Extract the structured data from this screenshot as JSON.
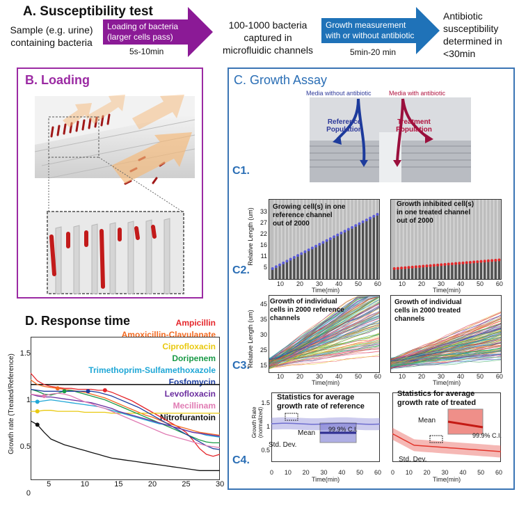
{
  "section_a": {
    "title": "A. Susceptibility test",
    "sample": [
      "Sample (e.g. urine)",
      "containing bacteria"
    ],
    "arrow1": [
      "Loading of bacteria",
      "(larger cells pass)"
    ],
    "arrow1_time": "5s-10min",
    "captured": [
      "100-1000 bacteria",
      "captured in",
      "microfluidic channels"
    ],
    "arrow2": [
      "Growth measurement",
      "with or without antibiotic"
    ],
    "arrow2_time": "5min-20 min",
    "result": [
      "Antibiotic",
      "susceptibility",
      "determined in",
      "<30min"
    ],
    "colors": {
      "arrow1": "#8b1a96",
      "arrow2": "#1f72b8"
    }
  },
  "section_b": {
    "title": "B. Loading"
  },
  "section_c": {
    "title": "C. Growth Assay",
    "media_without": "Media without antibiotic",
    "media_with": "Media with antibiotic",
    "reference_pop": [
      "Reference",
      "Population"
    ],
    "treatment_pop": [
      "Treatment",
      "Population"
    ],
    "labels": [
      "C1.",
      "C2.",
      "C3.",
      "C4."
    ],
    "c2_left": [
      "Growing cell(s) in one",
      "reference channel",
      "out of 2000"
    ],
    "c2_right": [
      "Growth inhibited cell(s)",
      "in one treated channel",
      "out of 2000"
    ],
    "c2_ylabel": "Relative Length (um)",
    "c2_yticks": [
      "33",
      "27",
      "22",
      "16",
      "11",
      "5"
    ],
    "c3_left": [
      "Growth of individual",
      "cells in 2000 reference",
      "channels"
    ],
    "c3_right": [
      "Growth of individual",
      "cells in 2000 treated",
      "channels"
    ],
    "c3_ylabel": "Relative Length (um)",
    "c3_yticks": [
      "45",
      "35",
      "30",
      "25",
      "15"
    ],
    "c4_left": [
      "Statistics for average",
      "growth rate of reference"
    ],
    "c4_right": [
      "Statistics for average",
      "growth rate of treated"
    ],
    "c4_ylabel": [
      "Growth Rate",
      "(normalized)"
    ],
    "c4_yticks": [
      "1.5",
      "1",
      "0.5"
    ],
    "mean": "Mean",
    "ci": "99.9% C.I.",
    "std_dev": "Std. Dev.",
    "xticks": [
      "10",
      "20",
      "30",
      "40",
      "50",
      "60"
    ],
    "c4_xticks": [
      "0",
      "10",
      "20",
      "30",
      "40",
      "50",
      "60"
    ],
    "xlabel": "Time(min)",
    "colors": {
      "reference": "#2e3a9a",
      "treatment": "#b0123e",
      "c4_left": "#6f6ecf",
      "c4_right": "#e3342a"
    }
  },
  "section_d": {
    "title": "D. Response time",
    "ylabel": "Growth rate (Treated/Reference)",
    "legend": [
      {
        "name": "Ampicillin",
        "color": "#e5262b"
      },
      {
        "name": "Amoxicillin-Clavulanate",
        "color": "#f26a22"
      },
      {
        "name": "Ciprofloxacin",
        "color": "#e9c90f"
      },
      {
        "name": "Doripenem",
        "color": "#1a9a47"
      },
      {
        "name": "Trimethoprim-Sulfamethoxazole",
        "color": "#20a7d6"
      },
      {
        "name": "Fosfomycin",
        "color": "#1f3fa0"
      },
      {
        "name": "Levofloxacin",
        "color": "#6a2b9e"
      },
      {
        "name": "Mecillinam",
        "color": "#e07bb3"
      },
      {
        "name": "Nitrofurantoin",
        "color": "#111111"
      }
    ],
    "yticks": [
      "1.5",
      "1",
      "0.5",
      "0"
    ],
    "xticks": [
      "5",
      "10",
      "15",
      "20",
      "25",
      "30"
    ]
  },
  "chart_data": {
    "type": "line",
    "title": "D. Response time",
    "xlabel": "",
    "ylabel": "Growth rate (Treated/Reference)",
    "xlim": [
      2,
      30
    ],
    "ylim": [
      0,
      1.5
    ],
    "x": [
      2,
      3,
      4,
      5,
      6,
      7,
      8,
      9,
      10,
      11,
      12,
      13,
      14,
      15,
      16,
      17,
      18,
      19,
      20,
      21,
      22,
      23,
      24,
      25,
      26,
      27,
      28,
      29,
      30
    ],
    "reference_line": 1.0,
    "series": [
      {
        "name": "Ampicillin",
        "values": [
          1.12,
          1.04,
          1.0,
          0.98,
          0.97,
          0.96,
          0.96,
          0.95,
          0.95,
          0.95,
          0.94,
          0.94,
          0.92,
          0.89,
          0.86,
          0.83,
          0.79,
          0.75,
          0.71,
          0.67,
          0.63,
          0.59,
          0.55,
          0.5,
          0.42,
          0.33,
          0.27,
          0.25,
          0.27
        ]
      },
      {
        "name": "Amoxicillin-Clavulanate",
        "values": [
          1.05,
          1.0,
          0.98,
          0.97,
          0.96,
          0.95,
          0.94,
          0.93,
          0.92,
          0.9,
          0.88,
          0.86,
          0.83,
          0.8,
          0.77,
          0.74,
          0.71,
          0.68,
          0.66,
          0.63,
          0.6,
          0.58,
          0.56,
          0.54,
          0.52,
          0.5,
          0.49,
          0.48,
          0.47
        ]
      },
      {
        "name": "Ciprofloxacin",
        "values": [
          0.72,
          0.72,
          0.73,
          0.73,
          0.72,
          0.72,
          0.72,
          0.72,
          0.71,
          0.71,
          0.71,
          0.71,
          0.7,
          0.7,
          0.7,
          0.7,
          0.7,
          0.7,
          0.7,
          0.7,
          0.7,
          0.7,
          0.7,
          0.7,
          0.7,
          0.7,
          0.7,
          0.7,
          0.7
        ]
      },
      {
        "name": "Doripenem",
        "values": [
          0.95,
          0.93,
          0.9,
          0.89,
          0.91,
          0.93,
          0.94,
          0.92,
          0.9,
          0.88,
          0.86,
          0.84,
          0.81,
          0.78,
          0.75,
          0.72,
          0.69,
          0.66,
          0.63,
          0.6,
          0.57,
          0.54,
          0.51,
          0.48,
          0.45,
          0.42,
          0.4,
          0.39,
          0.39
        ]
      },
      {
        "name": "Trimethoprim-Sulfamethoxazole",
        "values": [
          0.82,
          0.82,
          0.83,
          0.84,
          0.83,
          0.82,
          0.81,
          0.8,
          0.79,
          0.78,
          0.77,
          0.75,
          0.73,
          0.71,
          0.69,
          0.67,
          0.65,
          0.63,
          0.61,
          0.59,
          0.58,
          0.56,
          0.54,
          0.52,
          0.5,
          0.49,
          0.47,
          0.46,
          0.45
        ]
      },
      {
        "name": "Fosfomycin",
        "values": [
          0.95,
          0.94,
          0.93,
          0.93,
          0.93,
          0.93,
          0.93,
          0.93,
          0.93,
          0.93,
          0.92,
          0.9,
          0.88,
          0.85,
          0.82,
          0.79,
          0.76,
          0.72,
          0.68,
          0.64,
          0.6,
          0.56,
          0.52,
          0.48,
          0.44,
          0.4,
          0.36,
          0.33,
          0.32
        ]
      },
      {
        "name": "Levofloxacin",
        "values": [
          0.9,
          0.88,
          0.87,
          0.87,
          0.86,
          0.85,
          0.84,
          0.83,
          0.82,
          0.81,
          0.79,
          0.77,
          0.75,
          0.72,
          0.7,
          0.68,
          0.66,
          0.64,
          0.62,
          0.6,
          0.58,
          0.56,
          0.54,
          0.52,
          0.5,
          0.49,
          0.48,
          0.47,
          0.46
        ]
      },
      {
        "name": "Mecillinam",
        "values": [
          0.9,
          0.89,
          0.88,
          0.9,
          0.91,
          0.9,
          0.88,
          0.85,
          0.82,
          0.8,
          0.77,
          0.75,
          0.72,
          0.69,
          0.66,
          0.63,
          0.6,
          0.57,
          0.54,
          0.51,
          0.48,
          0.46,
          0.44,
          0.42,
          0.4,
          0.38,
          0.36,
          0.35,
          0.34
        ]
      },
      {
        "name": "Nitrofurantoin",
        "values": [
          0.62,
          0.58,
          0.5,
          0.43,
          0.4,
          0.37,
          0.35,
          0.33,
          0.31,
          0.29,
          0.27,
          0.25,
          0.23,
          0.22,
          0.21,
          0.2,
          0.19,
          0.18,
          0.17,
          0.16,
          0.15,
          0.14,
          0.13,
          0.12,
          0.11,
          0.1,
          0.1,
          0.1,
          0.1
        ]
      }
    ],
    "markers": [
      {
        "series": "Ampicillin",
        "x": 13
      },
      {
        "series": "Fosfomycin",
        "x": 10.5
      },
      {
        "series": "Doripenem",
        "x": 7
      },
      {
        "series": "Amoxicillin-Clavulanate",
        "x": 6
      },
      {
        "series": "Mecillinam",
        "x": 4
      },
      {
        "series": "Trimethoprim-Sulfamethoxazole",
        "x": 3
      },
      {
        "series": "Ciprofloxacin",
        "x": 3
      },
      {
        "series": "Nitrofurantoin",
        "x": 3
      }
    ]
  }
}
